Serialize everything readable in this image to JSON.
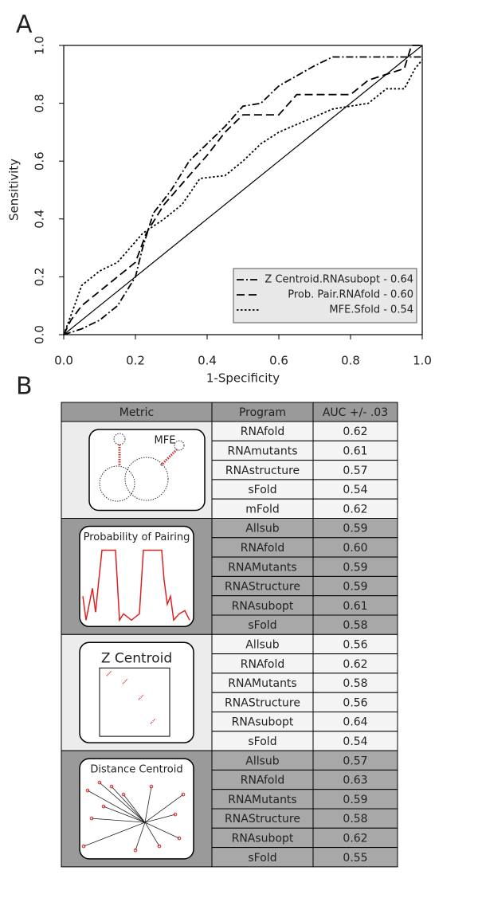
{
  "panel_labels": [
    "A",
    "B"
  ],
  "chart_data": {
    "type": "line",
    "xlabel": "1-Specificity",
    "ylabel": "Sensitivity",
    "xlim": [
      0,
      1
    ],
    "ylim": [
      0,
      1
    ],
    "xticks": [
      {
        "value": 0,
        "label": "0.0"
      },
      0.2,
      0.4,
      0.6,
      0.8,
      {
        "value": 1,
        "label": "1.0"
      }
    ],
    "yticks": [
      {
        "value": 0,
        "label": "0.0"
      },
      0.2,
      0.4,
      0.6,
      0.8,
      {
        "value": 1,
        "label": "1.0"
      }
    ],
    "legend": "lower-right",
    "reference_line": {
      "x": [
        0,
        1
      ],
      "y": [
        0,
        1
      ],
      "color": "#000000"
    },
    "series": [
      {
        "name": "Z Centroid.RNAsubopt - 0.64",
        "color": "#000000",
        "dash": "dashdot",
        "x": [
          0,
          0.05,
          0.1,
          0.15,
          0.2,
          0.22,
          0.25,
          0.3,
          0.35,
          0.4,
          0.45,
          0.5,
          0.55,
          0.6,
          0.7,
          0.75,
          1.0
        ],
        "values": [
          0,
          0.02,
          0.05,
          0.1,
          0.2,
          0.3,
          0.42,
          0.5,
          0.6,
          0.66,
          0.72,
          0.79,
          0.8,
          0.86,
          0.93,
          0.96,
          0.96
        ]
      },
      {
        "name": "Prob. Pair.RNAfold - 0.60",
        "color": "#000000",
        "dash": "dashed",
        "x": [
          0,
          0.02,
          0.05,
          0.1,
          0.2,
          0.23,
          0.28,
          0.35,
          0.4,
          0.45,
          0.5,
          0.6,
          0.65,
          0.8,
          0.85,
          0.95,
          0.97,
          1.0
        ],
        "values": [
          0,
          0.05,
          0.1,
          0.15,
          0.25,
          0.35,
          0.45,
          0.55,
          0.62,
          0.7,
          0.76,
          0.76,
          0.83,
          0.83,
          0.88,
          0.92,
          1.0,
          1.0
        ]
      },
      {
        "name": "MFE.Sfold - 0.54",
        "color": "#000000",
        "dash": "dotted",
        "x": [
          0,
          0.03,
          0.05,
          0.1,
          0.15,
          0.22,
          0.28,
          0.33,
          0.38,
          0.45,
          0.5,
          0.55,
          0.6,
          0.75,
          0.85,
          0.9,
          0.95,
          0.98,
          1.0
        ],
        "values": [
          0,
          0.1,
          0.17,
          0.22,
          0.25,
          0.35,
          0.4,
          0.45,
          0.54,
          0.55,
          0.6,
          0.66,
          0.7,
          0.78,
          0.8,
          0.85,
          0.85,
          0.92,
          0.95
        ]
      }
    ]
  },
  "table": {
    "header": [
      "Metric",
      "Program",
      "AUC +/- .03"
    ],
    "groups": [
      {
        "metric": "MFE",
        "rows": [
          [
            "RNAfold",
            "0.62"
          ],
          [
            "RNAmutants",
            "0.61"
          ],
          [
            "RNAstructure",
            "0.57"
          ],
          [
            "sFold",
            "0.54"
          ],
          [
            "mFold",
            "0.62"
          ]
        ]
      },
      {
        "metric": "Probability of Pairing",
        "rows": [
          [
            "Allsub",
            "0.59"
          ],
          [
            "RNAfold",
            "0.60"
          ],
          [
            "RNAMutants",
            "0.59"
          ],
          [
            "RNAStructure",
            "0.59"
          ],
          [
            "RNAsubopt",
            "0.61"
          ],
          [
            "sFold",
            "0.58"
          ]
        ]
      },
      {
        "metric": "Z Centroid",
        "rows": [
          [
            "Allsub",
            "0.56"
          ],
          [
            "RNAfold",
            "0.62"
          ],
          [
            "RNAMutants",
            "0.58"
          ],
          [
            "RNAStructure",
            "0.56"
          ],
          [
            "RNAsubopt",
            "0.64"
          ],
          [
            "sFold",
            "0.54"
          ]
        ]
      },
      {
        "metric": "Distance Centroid",
        "rows": [
          [
            "Allsub",
            "0.57"
          ],
          [
            "RNAfold",
            "0.63"
          ],
          [
            "RNAMutants",
            "0.59"
          ],
          [
            "RNAStructure",
            "0.58"
          ],
          [
            "RNAsubopt",
            "0.62"
          ],
          [
            "sFold",
            "0.55"
          ]
        ]
      }
    ]
  }
}
